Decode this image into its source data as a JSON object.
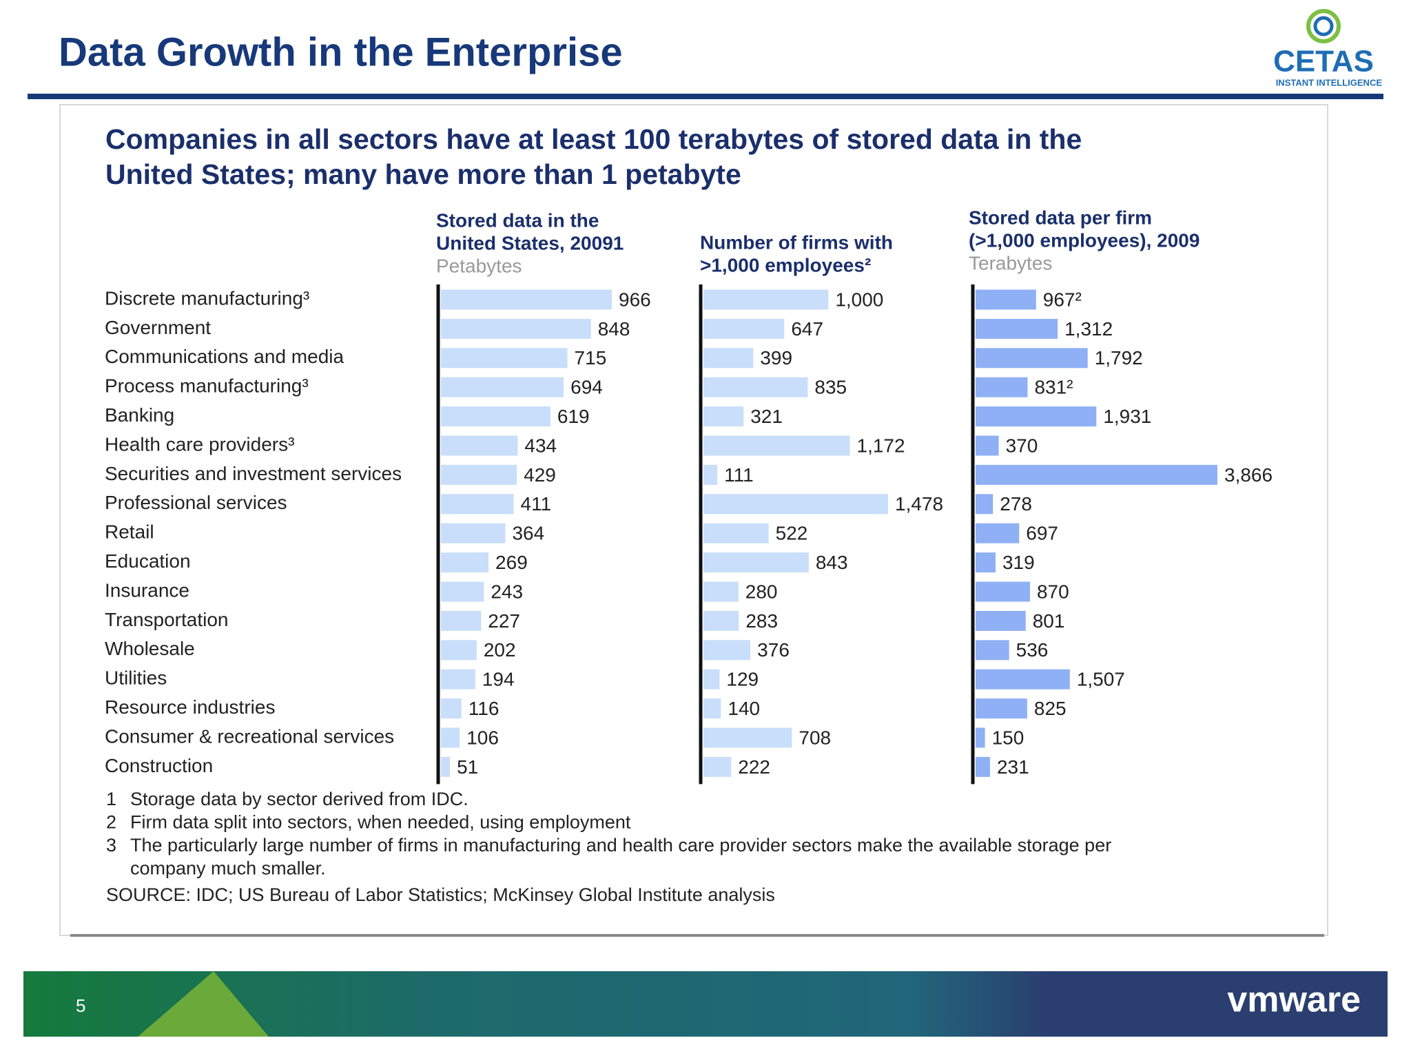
{
  "header": {
    "title": "Data Growth in the Enterprise",
    "logo_name": "CETAS",
    "logo_tagline": "INSTANT INTELLIGENCE"
  },
  "heading": [
    "Companies in all sectors have at least 100 terabytes of stored data in the",
    "United States; many have more than 1 petabyte"
  ],
  "chart_data": [
    {
      "type": "bar",
      "orientation": "horizontal",
      "title": [
        "Stored data in the",
        "United States, 20091"
      ],
      "unit": "Petabytes",
      "color": "#c8defa",
      "categories": [
        "Discrete manufacturing³",
        "Government",
        "Communications and media",
        "Process manufacturing³",
        "Banking",
        "Health care providers³",
        "Securities and investment services",
        "Professional services",
        "Retail",
        "Education",
        "Insurance",
        "Transportation",
        "Wholesale",
        "Utilities",
        "Resource industries",
        "Consumer & recreational services",
        "Construction"
      ],
      "values": [
        966,
        848,
        715,
        694,
        619,
        434,
        429,
        411,
        364,
        269,
        243,
        227,
        202,
        194,
        116,
        106,
        51
      ]
    },
    {
      "type": "bar",
      "orientation": "horizontal",
      "title": [
        "Number of firms with",
        ">1,000 employees²"
      ],
      "color": "#c8defa",
      "values": [
        1000,
        647,
        399,
        835,
        321,
        1172,
        111,
        1478,
        522,
        843,
        280,
        283,
        376,
        129,
        140,
        708,
        222
      ],
      "value_labels": [
        "1,000",
        "647",
        "399",
        "835",
        "321",
        "1,172",
        "111",
        "1,478",
        "522",
        "843",
        "280",
        "283",
        "376",
        "129",
        "140",
        "708",
        "222"
      ]
    },
    {
      "type": "bar",
      "orientation": "horizontal",
      "title": [
        "Stored data per firm",
        "(>1,000 employees), 2009"
      ],
      "unit": "Terabytes",
      "color": "#8fb0f5",
      "values": [
        967,
        1312,
        1792,
        831,
        1931,
        370,
        3866,
        278,
        697,
        319,
        870,
        801,
        536,
        1507,
        825,
        150,
        231
      ],
      "value_labels": [
        "967²",
        "1,312",
        "1,792",
        "831²",
        "1,931",
        "370",
        "3,866",
        "278",
        "697",
        "319",
        "870",
        "801",
        "536",
        "1,507",
        "825",
        "150",
        "231"
      ]
    }
  ],
  "footnotes": [
    {
      "number": "1",
      "text": [
        "Storage data by sector derived from IDC."
      ]
    },
    {
      "number": "2",
      "text": [
        "Firm data split into sectors, when needed, using employment"
      ]
    },
    {
      "number": "3",
      "text": [
        "The particularly large number of firms in manufacturing and health care provider sectors make the available storage per",
        "company much smaller."
      ]
    }
  ],
  "source": "SOURCE: IDC; US Bureau of Labor Statistics; McKinsey Global Institute analysis",
  "footer": {
    "page_number": "5",
    "brand": "vmware"
  }
}
